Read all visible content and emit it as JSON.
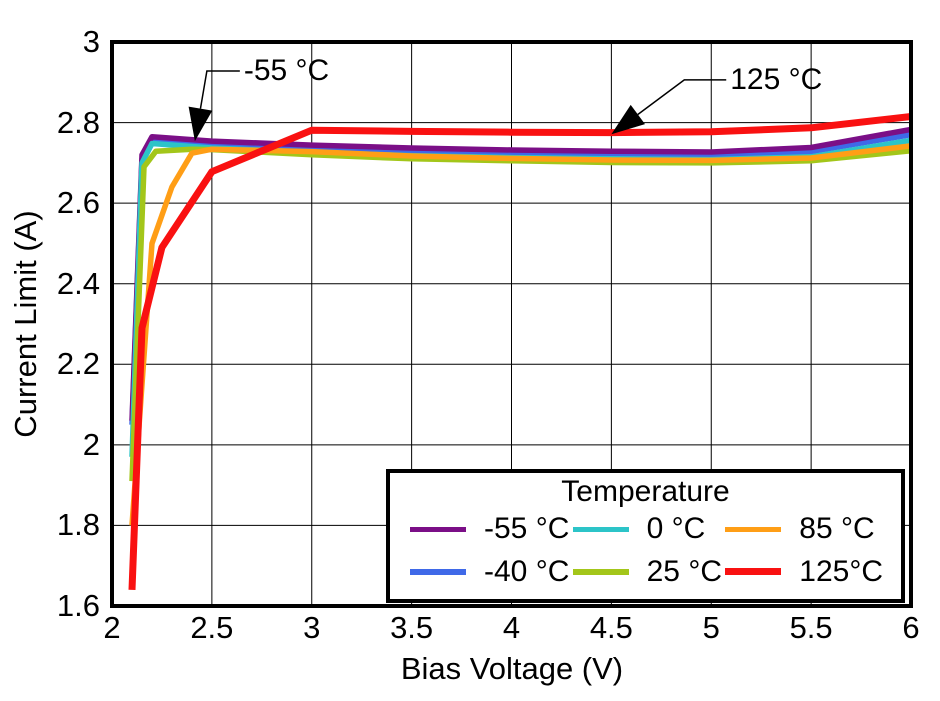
{
  "chart_data": {
    "type": "line",
    "title": "",
    "xlabel": "Bias Voltage (V)",
    "ylabel": "Current Limit (A)",
    "xlim": [
      2,
      6
    ],
    "ylim": [
      1.6,
      3
    ],
    "xticks": [
      2,
      2.5,
      3,
      3.5,
      4,
      4.5,
      5,
      5.5,
      6
    ],
    "yticks": [
      3,
      2.8,
      2.6,
      2.4,
      2.2,
      2,
      1.8,
      1.6
    ],
    "grid": true,
    "legend": {
      "title": "Temperature",
      "position": "bottom-right"
    },
    "series": [
      {
        "name": "-55 °C",
        "color": "#7B0F87",
        "width": 5.5,
        "z": 2,
        "points": [
          [
            2.1,
            2.06
          ],
          [
            2.15,
            2.72
          ],
          [
            2.2,
            2.765
          ],
          [
            2.5,
            2.754
          ],
          [
            3,
            2.744
          ],
          [
            3.5,
            2.737
          ],
          [
            4,
            2.732
          ],
          [
            4.5,
            2.729
          ],
          [
            5,
            2.727
          ],
          [
            5.5,
            2.738
          ],
          [
            6,
            2.783
          ]
        ]
      },
      {
        "name": "-40 °C",
        "color": "#3F69E8",
        "width": 5.5,
        "z": 1,
        "points": [
          [
            2.1,
            2.05
          ],
          [
            2.15,
            2.71
          ],
          [
            2.2,
            2.757
          ],
          [
            2.5,
            2.746
          ],
          [
            3,
            2.736
          ],
          [
            3.5,
            2.728
          ],
          [
            4,
            2.722
          ],
          [
            4.5,
            2.719
          ],
          [
            5,
            2.718
          ],
          [
            5.5,
            2.728
          ],
          [
            6,
            2.77
          ]
        ]
      },
      {
        "name": "0 °C",
        "color": "#2CC4C8",
        "width": 5.5,
        "z": 3,
        "points": [
          [
            2.1,
            1.97
          ],
          [
            2.15,
            2.7
          ],
          [
            2.2,
            2.748
          ],
          [
            2.5,
            2.737
          ],
          [
            3,
            2.726
          ],
          [
            3.5,
            2.718
          ],
          [
            4,
            2.713
          ],
          [
            4.5,
            2.71
          ],
          [
            5,
            2.708
          ],
          [
            5.5,
            2.715
          ],
          [
            6,
            2.756
          ]
        ]
      },
      {
        "name": "25 °C",
        "color": "#A3C61A",
        "width": 5.5,
        "z": 4,
        "points": [
          [
            2.1,
            1.91
          ],
          [
            2.16,
            2.69
          ],
          [
            2.22,
            2.729
          ],
          [
            2.4,
            2.734
          ],
          [
            2.5,
            2.733
          ],
          [
            3,
            2.72
          ],
          [
            3.5,
            2.71
          ],
          [
            4,
            2.705
          ],
          [
            4.5,
            2.701
          ],
          [
            5,
            2.7
          ],
          [
            5.5,
            2.705
          ],
          [
            6,
            2.73
          ]
        ]
      },
      {
        "name": "85 °C",
        "color": "#FF9E16",
        "width": 5.5,
        "z": 5,
        "points": [
          [
            2.1,
            1.8
          ],
          [
            2.2,
            2.5
          ],
          [
            2.3,
            2.64
          ],
          [
            2.4,
            2.724
          ],
          [
            2.5,
            2.734
          ],
          [
            3,
            2.728
          ],
          [
            3.5,
            2.717
          ],
          [
            4,
            2.711
          ],
          [
            4.5,
            2.707
          ],
          [
            5,
            2.706
          ],
          [
            5.5,
            2.712
          ],
          [
            6,
            2.742
          ]
        ]
      },
      {
        "name": "125°C",
        "color": "#F91111",
        "width": 7,
        "z": 6,
        "points": [
          [
            2.1,
            1.64
          ],
          [
            2.15,
            2.29
          ],
          [
            2.25,
            2.49
          ],
          [
            2.5,
            2.678
          ],
          [
            3,
            2.781
          ],
          [
            3.5,
            2.778
          ],
          [
            4,
            2.776
          ],
          [
            4.5,
            2.775
          ],
          [
            5,
            2.777
          ],
          [
            5.5,
            2.787
          ],
          [
            6,
            2.815
          ]
        ]
      }
    ],
    "annotations": [
      {
        "text": "-55 °C",
        "label_at": [
          2.64,
          2.928
        ],
        "elbow": [
          2.475,
          2.928
        ],
        "tip": [
          2.415,
          2.754
        ]
      },
      {
        "text": "125 °C",
        "label_at": [
          5.075,
          2.906
        ],
        "elbow": [
          4.865,
          2.906
        ],
        "tip": [
          4.5,
          2.771
        ]
      }
    ]
  }
}
